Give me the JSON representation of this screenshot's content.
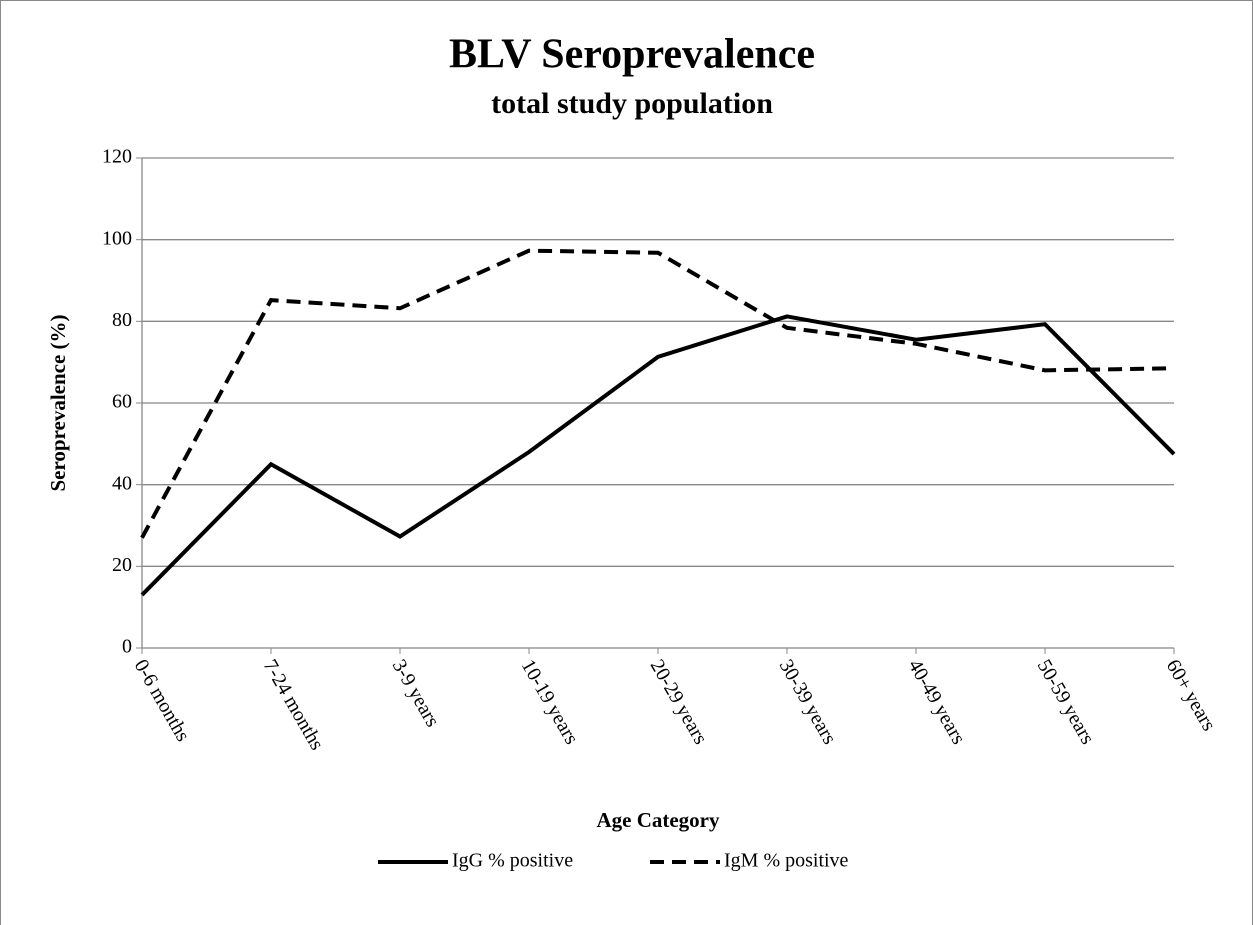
{
  "chart_data": {
    "type": "line",
    "title": "BLV Seroprevalence",
    "subtitle": "total study population",
    "x_label": "Age Category",
    "y_label": "Seroprevalence (%)",
    "categories": [
      "0-6 months",
      "7-24 months",
      "3-9 years",
      "10-19 years",
      "20-29 years",
      "30-39 years",
      "40-49 years",
      "50-59 years",
      "60+ years"
    ],
    "series": [
      {
        "name": "IgG % positive",
        "color": "#000000",
        "dash": "solid",
        "values": [
          13,
          45,
          27.3,
          48,
          71.3,
          81.2,
          75.5,
          79.3,
          47.5
        ]
      },
      {
        "name": "IgM % positive",
        "color": "#000000",
        "dash": "dashed",
        "values": [
          27,
          85.2,
          83.2,
          97.3,
          96.8,
          78.4,
          74.5,
          68,
          68.5
        ]
      }
    ],
    "ylim": [
      0,
      120
    ],
    "yticks": [
      0,
      20,
      40,
      60,
      80,
      100,
      120
    ],
    "grid": true,
    "legend": "bottom"
  }
}
